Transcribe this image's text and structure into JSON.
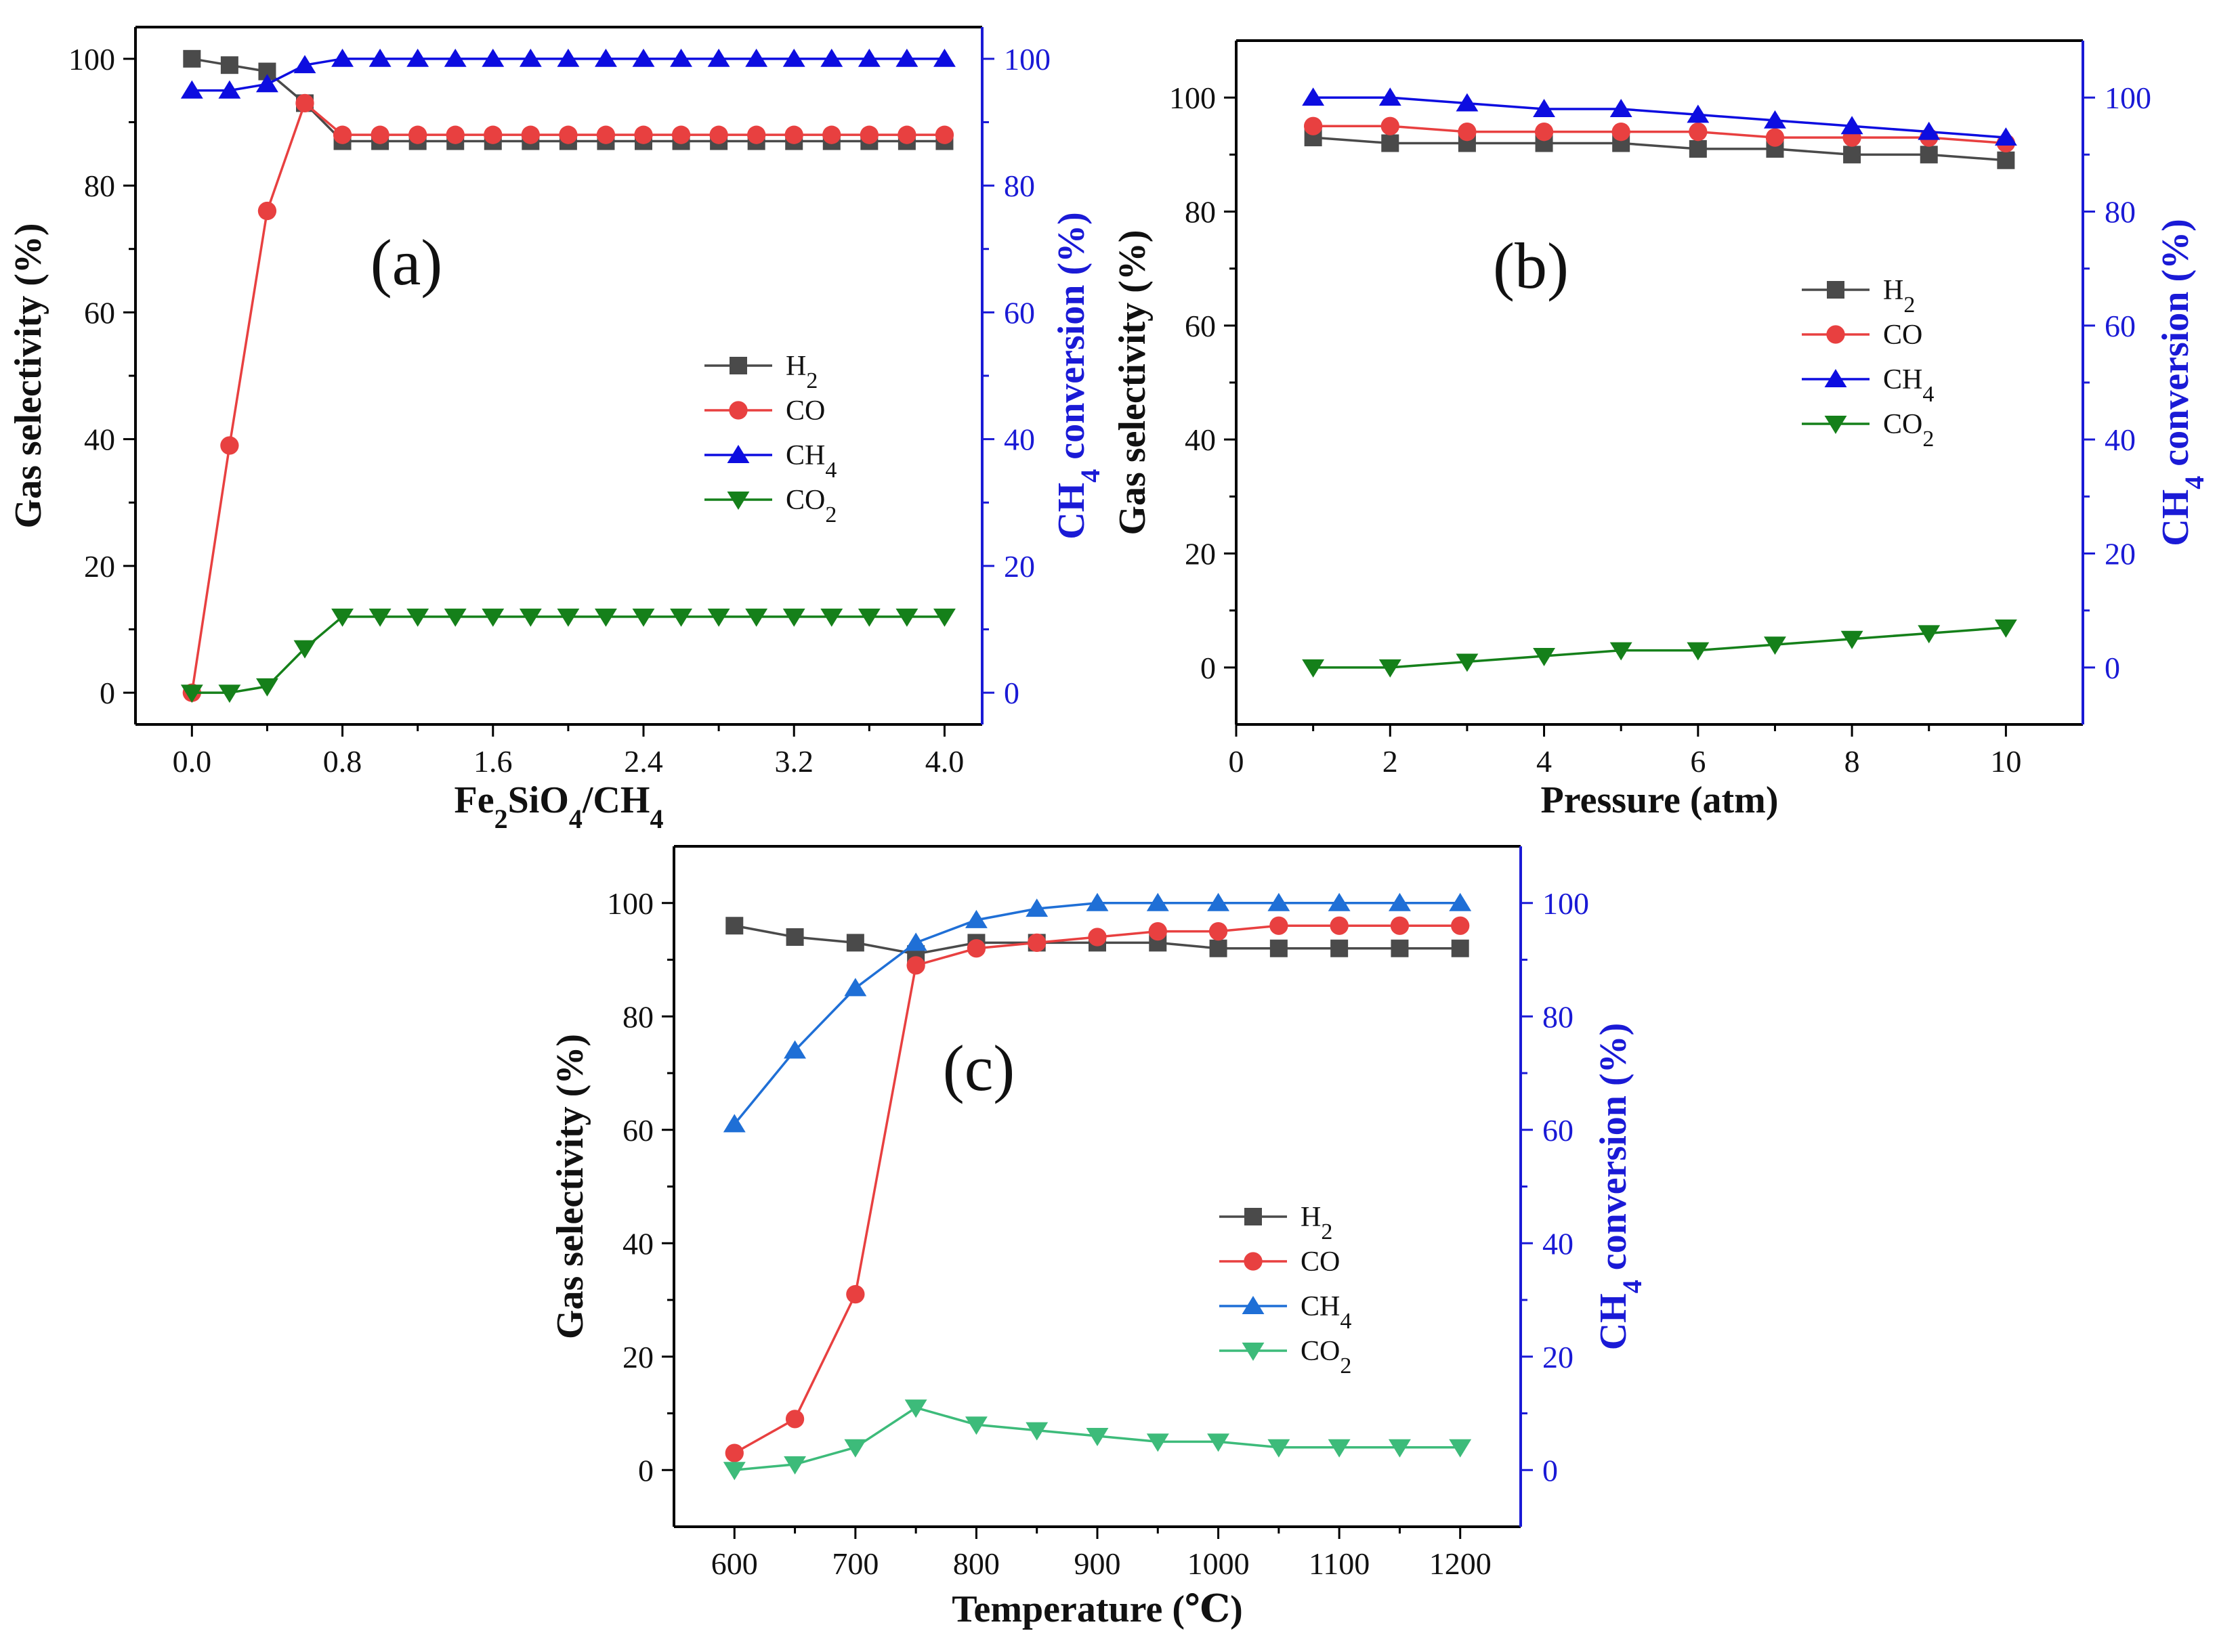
{
  "chart_data": [
    {
      "type": "line",
      "panel_label": "(a)",
      "xlabel": "Fe2SiO4/CH4",
      "xlabel_parts": {
        "a": "Fe",
        "a_sub": "2",
        "b": "SiO",
        "b_sub": "4",
        "c": "/CH",
        "c_sub": "4"
      },
      "ylabel": "Gas selectivity (%)",
      "y2label": "CH4 conversion (%)",
      "y2label_parts": {
        "a": "CH",
        "sub": "4",
        "b": " conversion (%)"
      },
      "xlim": [
        -0.3,
        4.2
      ],
      "ylim": [
        -5,
        105
      ],
      "y2lim": [
        -5,
        105
      ],
      "xticks": [
        "0.0",
        "0.8",
        "1.6",
        "2.4",
        "3.2",
        "4.0"
      ],
      "xtick_values": [
        0,
        0.8,
        1.6,
        2.4,
        3.2,
        4.0
      ],
      "xminor_values": [
        0.4,
        1.2,
        2.0,
        2.8,
        3.6
      ],
      "yticks": [
        "0",
        "20",
        "40",
        "60",
        "80",
        "100"
      ],
      "ytick_values": [
        0,
        20,
        40,
        60,
        80,
        100
      ],
      "y2ticks": [
        "0",
        "20",
        "40",
        "60",
        "80",
        "100"
      ],
      "x": [
        0.0,
        0.2,
        0.4,
        0.6,
        0.8,
        1.0,
        1.2,
        1.4,
        1.6,
        1.8,
        2.0,
        2.2,
        2.4,
        2.6,
        2.8,
        3.0,
        3.2,
        3.4,
        3.6,
        3.8,
        4.0
      ],
      "legend_position": "center-right",
      "series": [
        {
          "name": "H2",
          "legend_main": "H",
          "legend_sub": "2",
          "marker": "square",
          "color": "#4a4a4a",
          "axis": "left",
          "values": [
            100,
            99,
            98,
            93,
            87,
            87,
            87,
            87,
            87,
            87,
            87,
            87,
            87,
            87,
            87,
            87,
            87,
            87,
            87,
            87,
            87
          ]
        },
        {
          "name": "CO",
          "legend_main": "CO",
          "legend_sub": "",
          "marker": "circle",
          "color": "#e84040",
          "axis": "left",
          "values": [
            0,
            39,
            76,
            93,
            88,
            88,
            88,
            88,
            88,
            88,
            88,
            88,
            88,
            88,
            88,
            88,
            88,
            88,
            88,
            88,
            88
          ]
        },
        {
          "name": "CH4",
          "legend_main": "CH",
          "legend_sub": "4",
          "marker": "triangle-up",
          "color": "#0d0de0",
          "axis": "right",
          "values": [
            95,
            95,
            96,
            99,
            100,
            100,
            100,
            100,
            100,
            100,
            100,
            100,
            100,
            100,
            100,
            100,
            100,
            100,
            100,
            100,
            100
          ]
        },
        {
          "name": "CO2",
          "legend_main": "CO",
          "legend_sub": "2",
          "marker": "triangle-down",
          "color": "#15801a",
          "axis": "left",
          "values": [
            0,
            0,
            1,
            7,
            12,
            12,
            12,
            12,
            12,
            12,
            12,
            12,
            12,
            12,
            12,
            12,
            12,
            12,
            12,
            12,
            12
          ]
        }
      ]
    },
    {
      "type": "line",
      "panel_label": "(b)",
      "xlabel": "Pressure (atm)",
      "ylabel": "Gas selectivity (%)",
      "y2label": "CH4 conversion (%)",
      "y2label_parts": {
        "a": "CH",
        "sub": "4",
        "b": " conversion (%)"
      },
      "xlim": [
        0,
        11
      ],
      "ylim": [
        -10,
        110
      ],
      "y2lim": [
        -10,
        110
      ],
      "xticks": [
        "0",
        "2",
        "4",
        "6",
        "8",
        "10"
      ],
      "xtick_values": [
        0,
        2,
        4,
        6,
        8,
        10
      ],
      "xminor_values": [
        1,
        3,
        5,
        7,
        9
      ],
      "yticks": [
        "0",
        "20",
        "40",
        "60",
        "80",
        "100"
      ],
      "ytick_values": [
        0,
        20,
        40,
        60,
        80,
        100
      ],
      "y2ticks": [
        "0",
        "20",
        "40",
        "60",
        "80",
        "100"
      ],
      "x": [
        1,
        2,
        3,
        4,
        5,
        6,
        7,
        8,
        9,
        10
      ],
      "legend_position": "center-right",
      "series": [
        {
          "name": "H2",
          "legend_main": "H",
          "legend_sub": "2",
          "marker": "square",
          "color": "#4a4a4a",
          "axis": "left",
          "values": [
            93,
            92,
            92,
            92,
            92,
            91,
            91,
            90,
            90,
            89
          ]
        },
        {
          "name": "CO",
          "legend_main": "CO",
          "legend_sub": "",
          "marker": "circle",
          "color": "#e84040",
          "axis": "left",
          "values": [
            95,
            95,
            94,
            94,
            94,
            94,
            93,
            93,
            93,
            92
          ]
        },
        {
          "name": "CH4",
          "legend_main": "CH",
          "legend_sub": "4",
          "marker": "triangle-up",
          "color": "#0d0de0",
          "axis": "right",
          "values": [
            100,
            100,
            99,
            98,
            98,
            97,
            96,
            95,
            94,
            93
          ]
        },
        {
          "name": "CO2",
          "legend_main": "CO",
          "legend_sub": "2",
          "marker": "triangle-down",
          "color": "#15801a",
          "axis": "left",
          "values": [
            0,
            0,
            1,
            2,
            3,
            3,
            4,
            5,
            6,
            7
          ]
        }
      ]
    },
    {
      "type": "line",
      "panel_label": "(c)",
      "xlabel": "Temperature (℃)",
      "ylabel": "Gas selectivity (%)",
      "y2label": "CH4 conversion (%)",
      "y2label_parts": {
        "a": "CH",
        "sub": "4",
        "b": " conversion (%)"
      },
      "xlim": [
        550,
        1250
      ],
      "ylim": [
        -10,
        110
      ],
      "y2lim": [
        -10,
        110
      ],
      "xticks": [
        "600",
        "700",
        "800",
        "900",
        "1000",
        "1100",
        "1200"
      ],
      "xtick_values": [
        600,
        700,
        800,
        900,
        1000,
        1100,
        1200
      ],
      "xminor_values": [
        650,
        750,
        850,
        950,
        1050,
        1150
      ],
      "yticks": [
        "0",
        "20",
        "40",
        "60",
        "80",
        "100"
      ],
      "ytick_values": [
        0,
        20,
        40,
        60,
        80,
        100
      ],
      "y2ticks": [
        "0",
        "20",
        "40",
        "60",
        "80",
        "100"
      ],
      "x": [
        600,
        650,
        700,
        750,
        800,
        850,
        900,
        950,
        1000,
        1050,
        1100,
        1150,
        1200
      ],
      "legend_position": "center-right",
      "series": [
        {
          "name": "H2",
          "legend_main": "H",
          "legend_sub": "2",
          "marker": "square",
          "color": "#4a4a4a",
          "axis": "left",
          "values": [
            96,
            94,
            93,
            91,
            93,
            93,
            93,
            93,
            92,
            92,
            92,
            92,
            92
          ]
        },
        {
          "name": "CO",
          "legend_main": "CO",
          "legend_sub": "",
          "marker": "circle",
          "color": "#e84040",
          "axis": "left",
          "values": [
            3,
            9,
            31,
            89,
            92,
            93,
            94,
            95,
            95,
            96,
            96,
            96,
            96
          ]
        },
        {
          "name": "CH4",
          "legend_main": "CH",
          "legend_sub": "4",
          "marker": "triangle-up",
          "color": "#1f6fd6",
          "axis": "right",
          "values": [
            61,
            74,
            85,
            93,
            97,
            99,
            100,
            100,
            100,
            100,
            100,
            100,
            100
          ]
        },
        {
          "name": "CO2",
          "legend_main": "CO",
          "legend_sub": "2",
          "marker": "triangle-down",
          "color": "#3dbb7a",
          "axis": "left",
          "values": [
            0,
            1,
            4,
            11,
            8,
            7,
            6,
            5,
            5,
            4,
            4,
            4,
            4
          ]
        }
      ]
    }
  ]
}
